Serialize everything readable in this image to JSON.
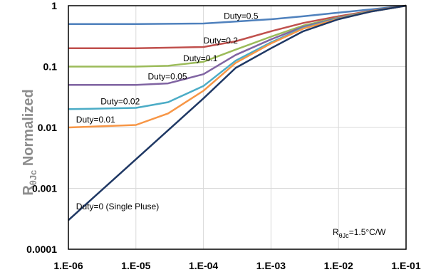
{
  "chart_data": {
    "type": "line",
    "xscale": "log",
    "yscale": "log",
    "xlim": [
      1e-06,
      0.1
    ],
    "ylim": [
      0.0001,
      1
    ],
    "grid": true,
    "legend": "none",
    "xlabel": "",
    "ylabel": {
      "main": "R",
      "sub": "θJc",
      "rest": " Normalized"
    },
    "annotation": {
      "main": "R",
      "sub": "θJc",
      "rest": "=1.5°C/W"
    },
    "x_tick_labels": [
      "1.E-06",
      "1.E-05",
      "1.E-04",
      "1.E-03",
      "1.E-02",
      "1.E-01"
    ],
    "y_tick_labels": [
      "0.0001",
      "0.001",
      "0.01",
      "0.1",
      "1"
    ],
    "series": [
      {
        "name": "Duty=0.5",
        "color": "#4f81bd",
        "x": [
          1e-06,
          1e-05,
          0.0001,
          0.0003,
          0.001,
          0.003,
          0.01,
          0.03,
          0.1
        ],
        "y": [
          0.5,
          0.5,
          0.51,
          0.55,
          0.6,
          0.67,
          0.77,
          0.87,
          1.0
        ]
      },
      {
        "name": "Duty=0.2",
        "color": "#c0504d",
        "x": [
          1e-06,
          1e-05,
          0.0001,
          0.0003,
          0.001,
          0.003,
          0.01,
          0.03,
          0.1
        ],
        "y": [
          0.2,
          0.2,
          0.21,
          0.26,
          0.38,
          0.52,
          0.67,
          0.82,
          1.0
        ]
      },
      {
        "name": "Duty=0.1",
        "color": "#9bbb59",
        "x": [
          1e-06,
          1e-05,
          3e-05,
          0.0001,
          0.0003,
          0.001,
          0.003,
          0.01,
          0.03,
          0.1
        ],
        "y": [
          0.1,
          0.1,
          0.103,
          0.12,
          0.19,
          0.31,
          0.47,
          0.64,
          0.81,
          1.0
        ]
      },
      {
        "name": "Duty=0.05",
        "color": "#8064a2",
        "x": [
          1e-06,
          1e-05,
          3e-05,
          0.0001,
          0.0003,
          0.001,
          0.003,
          0.01,
          0.03,
          0.1
        ],
        "y": [
          0.05,
          0.05,
          0.053,
          0.075,
          0.155,
          0.28,
          0.45,
          0.63,
          0.8,
          1.0
        ]
      },
      {
        "name": "Duty=0.02",
        "color": "#4bacc6",
        "x": [
          1e-06,
          1e-05,
          3e-05,
          0.0001,
          0.0003,
          0.001,
          0.003,
          0.01,
          0.03,
          0.1
        ],
        "y": [
          0.02,
          0.021,
          0.026,
          0.048,
          0.125,
          0.25,
          0.43,
          0.62,
          0.8,
          1.0
        ]
      },
      {
        "name": "Duty=0.01",
        "color": "#f79646",
        "x": [
          1e-06,
          1e-05,
          3e-05,
          0.0001,
          0.0003,
          0.001,
          0.003,
          0.01,
          0.03,
          0.1
        ],
        "y": [
          0.01,
          0.011,
          0.017,
          0.04,
          0.115,
          0.24,
          0.42,
          0.61,
          0.8,
          1.0
        ]
      },
      {
        "name": "Duty=0 (Single Pluse)",
        "color": "#1f3864",
        "x": [
          1e-06,
          1e-05,
          3e-05,
          0.0001,
          0.0003,
          0.001,
          0.003,
          0.01,
          0.03,
          0.1
        ],
        "y": [
          0.0003,
          0.003,
          0.009,
          0.03,
          0.095,
          0.2,
          0.38,
          0.6,
          0.8,
          1.0
        ]
      }
    ]
  },
  "colors": {
    "grid": "#d9d9d9",
    "axis": "#000000",
    "ylabel": "#8c8c8c"
  }
}
